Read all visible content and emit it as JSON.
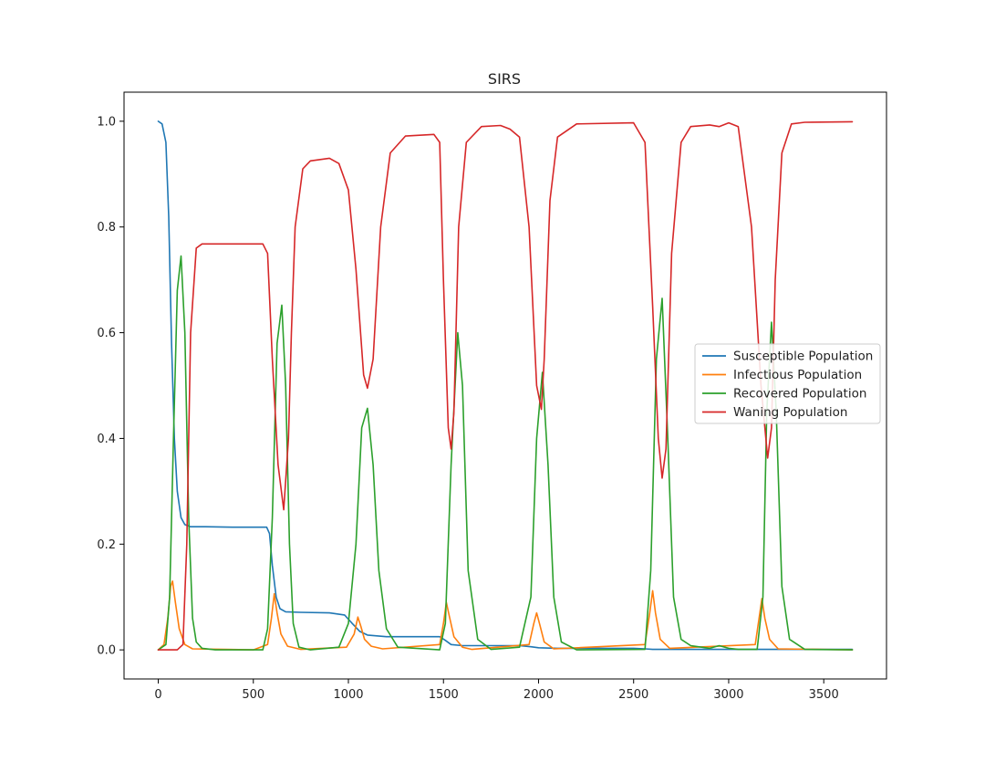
{
  "chart_data": {
    "type": "line",
    "title": "SIRS",
    "xlabel": "",
    "ylabel": "",
    "xlim": [
      -180,
      3830
    ],
    "ylim": [
      -0.055,
      1.055
    ],
    "x_ticks": [
      0,
      500,
      1000,
      1500,
      2000,
      2500,
      3000,
      3500
    ],
    "y_ticks": [
      0.0,
      0.2,
      0.4,
      0.6,
      0.8,
      1.0
    ],
    "x_tick_labels": [
      "0",
      "500",
      "1000",
      "1500",
      "2000",
      "2500",
      "3000",
      "3500"
    ],
    "y_tick_labels": [
      "0.0",
      "0.2",
      "0.4",
      "0.6",
      "0.8",
      "1.0"
    ],
    "grid": false,
    "legend_position": "center-right",
    "series": [
      {
        "name": "Susceptible Population",
        "color": "#1f77b4",
        "x": [
          0,
          20,
          40,
          55,
          70,
          85,
          100,
          120,
          140,
          170,
          250,
          400,
          570,
          585,
          600,
          620,
          640,
          670,
          750,
          900,
          980,
          1020,
          1060,
          1100,
          1200,
          1480,
          1510,
          1540,
          1600,
          1900,
          1960,
          2000,
          2100,
          2500,
          2560,
          2600,
          3000,
          3650
        ],
        "y": [
          1.0,
          0.995,
          0.96,
          0.82,
          0.58,
          0.4,
          0.3,
          0.25,
          0.237,
          0.233,
          0.233,
          0.232,
          0.232,
          0.22,
          0.16,
          0.1,
          0.078,
          0.072,
          0.071,
          0.07,
          0.066,
          0.05,
          0.035,
          0.028,
          0.025,
          0.025,
          0.018,
          0.01,
          0.008,
          0.008,
          0.006,
          0.004,
          0.003,
          0.003,
          0.002,
          0.001,
          0.001,
          0.001
        ]
      },
      {
        "name": "Infectious Population",
        "color": "#ff7f0e",
        "x": [
          0,
          30,
          50,
          65,
          75,
          90,
          110,
          140,
          180,
          500,
          575,
          595,
          610,
          625,
          645,
          680,
          750,
          990,
          1030,
          1050,
          1065,
          1085,
          1120,
          1180,
          1480,
          1500,
          1515,
          1530,
          1555,
          1600,
          1650,
          1950,
          1975,
          1990,
          2005,
          2030,
          2080,
          2560,
          2585,
          2600,
          2615,
          2640,
          2690,
          3140,
          3160,
          3175,
          3190,
          3215,
          3260,
          3650
        ],
        "y": [
          0.0,
          0.01,
          0.06,
          0.12,
          0.13,
          0.09,
          0.04,
          0.01,
          0.002,
          0.0,
          0.01,
          0.06,
          0.106,
          0.07,
          0.03,
          0.007,
          0.001,
          0.005,
          0.03,
          0.062,
          0.045,
          0.02,
          0.007,
          0.002,
          0.01,
          0.05,
          0.09,
          0.065,
          0.025,
          0.005,
          0.001,
          0.01,
          0.05,
          0.07,
          0.05,
          0.015,
          0.002,
          0.01,
          0.07,
          0.112,
          0.07,
          0.02,
          0.003,
          0.01,
          0.06,
          0.097,
          0.06,
          0.02,
          0.002,
          0.0
        ]
      },
      {
        "name": "Recovered Population",
        "color": "#2ca02c",
        "x": [
          0,
          40,
          60,
          80,
          100,
          120,
          140,
          160,
          180,
          200,
          230,
          300,
          550,
          575,
          600,
          625,
          650,
          670,
          690,
          710,
          740,
          800,
          950,
          1000,
          1040,
          1070,
          1100,
          1130,
          1160,
          1200,
          1260,
          1480,
          1510,
          1540,
          1575,
          1600,
          1630,
          1680,
          1750,
          1900,
          1960,
          1990,
          2020,
          2050,
          2080,
          2120,
          2200,
          2560,
          2590,
          2620,
          2650,
          2680,
          2710,
          2750,
          2800,
          2900,
          2950,
          3000,
          3050,
          3150,
          3180,
          3200,
          3225,
          3250,
          3280,
          3320,
          3400,
          3650
        ],
        "y": [
          0.0,
          0.01,
          0.1,
          0.4,
          0.68,
          0.745,
          0.6,
          0.25,
          0.06,
          0.015,
          0.003,
          0.0,
          0.0,
          0.04,
          0.25,
          0.58,
          0.652,
          0.5,
          0.2,
          0.05,
          0.005,
          0.0,
          0.005,
          0.05,
          0.2,
          0.42,
          0.457,
          0.35,
          0.15,
          0.04,
          0.005,
          0.0,
          0.05,
          0.35,
          0.6,
          0.5,
          0.15,
          0.02,
          0.001,
          0.005,
          0.1,
          0.4,
          0.525,
          0.35,
          0.1,
          0.015,
          0.0,
          0.001,
          0.15,
          0.55,
          0.665,
          0.4,
          0.1,
          0.02,
          0.008,
          0.003,
          0.008,
          0.003,
          0.001,
          0.001,
          0.1,
          0.45,
          0.62,
          0.45,
          0.12,
          0.02,
          0.001,
          0.0
        ]
      },
      {
        "name": "Waning Population",
        "color": "#d62728",
        "x": [
          0,
          100,
          130,
          150,
          170,
          200,
          230,
          300,
          550,
          575,
          600,
          630,
          660,
          685,
          700,
          720,
          760,
          800,
          900,
          950,
          1000,
          1040,
          1080,
          1100,
          1130,
          1170,
          1220,
          1300,
          1450,
          1480,
          1500,
          1525,
          1540,
          1555,
          1580,
          1620,
          1700,
          1800,
          1850,
          1900,
          1950,
          1990,
          2015,
          2030,
          2060,
          2100,
          2200,
          2500,
          2560,
          2600,
          2630,
          2650,
          2670,
          2700,
          2750,
          2800,
          2900,
          2950,
          3000,
          3050,
          3120,
          3170,
          3205,
          3225,
          3245,
          3280,
          3330,
          3400,
          3650
        ],
        "y": [
          0.0,
          0.0,
          0.01,
          0.2,
          0.6,
          0.76,
          0.768,
          0.768,
          0.768,
          0.75,
          0.55,
          0.35,
          0.265,
          0.4,
          0.6,
          0.8,
          0.91,
          0.925,
          0.93,
          0.92,
          0.87,
          0.72,
          0.52,
          0.495,
          0.55,
          0.8,
          0.94,
          0.972,
          0.975,
          0.96,
          0.7,
          0.42,
          0.38,
          0.45,
          0.8,
          0.96,
          0.99,
          0.992,
          0.985,
          0.97,
          0.8,
          0.5,
          0.455,
          0.55,
          0.85,
          0.97,
          0.995,
          0.997,
          0.96,
          0.65,
          0.4,
          0.325,
          0.38,
          0.75,
          0.96,
          0.99,
          0.993,
          0.99,
          0.997,
          0.99,
          0.8,
          0.5,
          0.363,
          0.42,
          0.7,
          0.94,
          0.995,
          0.998,
          0.999
        ]
      }
    ]
  }
}
